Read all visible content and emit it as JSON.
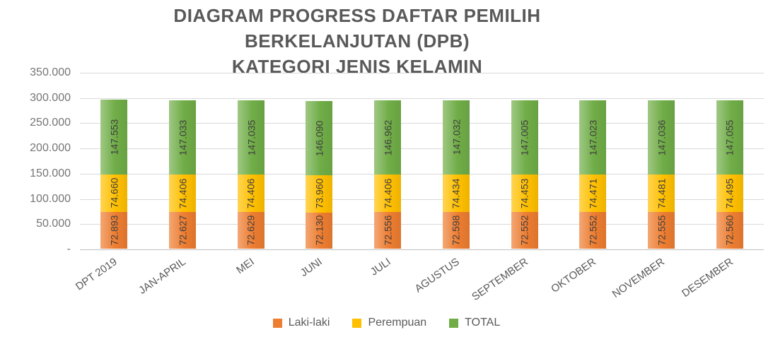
{
  "title": {
    "lines": [
      "DIAGRAM PROGRESS DAFTAR PEMILIH",
      "BERKELANJUTAN (DPB)",
      "KATEGORI JENIS KELAMIN"
    ]
  },
  "colors": {
    "laki_laki": "#ED7D31",
    "perempuan": "#FFC000",
    "total": "#70AD47",
    "title_text": "#595959",
    "axis_text": "#757575",
    "gridline": "#D9D9D9"
  },
  "chart_data": {
    "type": "bar",
    "stacked": true,
    "title": "DIAGRAM PROGRESS DAFTAR PEMILIH BERKELANJUTAN (DPB) KATEGORI JENIS KELAMIN",
    "xlabel": "",
    "ylabel": "",
    "ylim": [
      0,
      350000
    ],
    "grid": true,
    "legend_position": "bottom",
    "y_tick_labels": [
      "350.000",
      "300.000",
      "250.000",
      "200.000",
      "150.000",
      "100.000",
      "50.000",
      "-"
    ],
    "categories": [
      "DPT 2019",
      "JAN-APRIL",
      "MEI",
      "JUNI",
      "JULI",
      "AGUSTUS",
      "SEPTEMBER",
      "OKTOBER",
      "NOVEMBER",
      "DESEMBER"
    ],
    "series": [
      {
        "name": "Laki-laki",
        "color": "#ED7D31",
        "values": [
          72893,
          72627,
          72629,
          72130,
          72556,
          72598,
          72552,
          72552,
          72555,
          72560
        ],
        "labels": [
          "72.893",
          "72.627",
          "72.629",
          "72.130",
          "72.556",
          "72.598",
          "72.552",
          "72.552",
          "72.555",
          "72.560"
        ]
      },
      {
        "name": "Perempuan",
        "color": "#FFC000",
        "values": [
          74660,
          74406,
          74406,
          73960,
          74406,
          74434,
          74453,
          74471,
          74481,
          74495
        ],
        "labels": [
          "74.660",
          "74.406",
          "74.406",
          "73.960",
          "74.406",
          "74.434",
          "74.453",
          "74.471",
          "74.481",
          "74.495"
        ]
      },
      {
        "name": "TOTAL",
        "color": "#70AD47",
        "values": [
          147553,
          147033,
          147035,
          146090,
          146962,
          147032,
          147005,
          147023,
          147036,
          147055
        ],
        "labels": [
          "147.553",
          "147.033",
          "147.035",
          "146.090",
          "146.962",
          "147.032",
          "147.005",
          "147.023",
          "147.036",
          "147.055"
        ]
      }
    ]
  }
}
